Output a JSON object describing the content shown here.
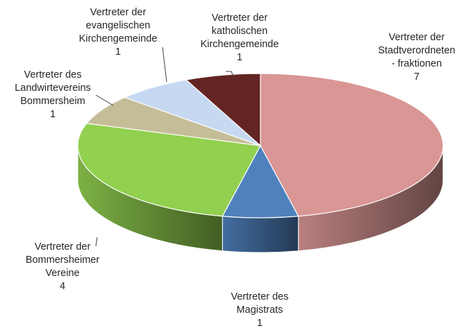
{
  "chart_data": {
    "type": "pie",
    "style": "3d",
    "title": "",
    "slices": [
      {
        "label": [
          "Vertreter der",
          "Stadtverordneten",
          "- fraktionen"
        ],
        "value": 7,
        "value_label": "7",
        "color": "#D99694"
      },
      {
        "label": [
          "Vertreter des",
          "Magistrats"
        ],
        "value": 1,
        "value_label": "1",
        "color": "#4F81BD"
      },
      {
        "label": [
          "Vertreter der",
          "Bommersheimer",
          "Vereine"
        ],
        "value": 4,
        "value_label": "4",
        "color": "#92D050"
      },
      {
        "label": [
          "Vertreter des",
          "Landwirtevereins",
          "Bommersheim"
        ],
        "value": 1,
        "value_label": "1",
        "color": "#C4BD97"
      },
      {
        "label": [
          "Vertreter der",
          "evangelischen",
          "Kirchengemeinde"
        ],
        "value": 1,
        "value_label": "1",
        "color": "#C6D9F1"
      },
      {
        "label": [
          "Vertreter der",
          "katholischen",
          "Kirchengemeinde"
        ],
        "value": 1,
        "value_label": "1",
        "color": "#632523"
      }
    ]
  }
}
